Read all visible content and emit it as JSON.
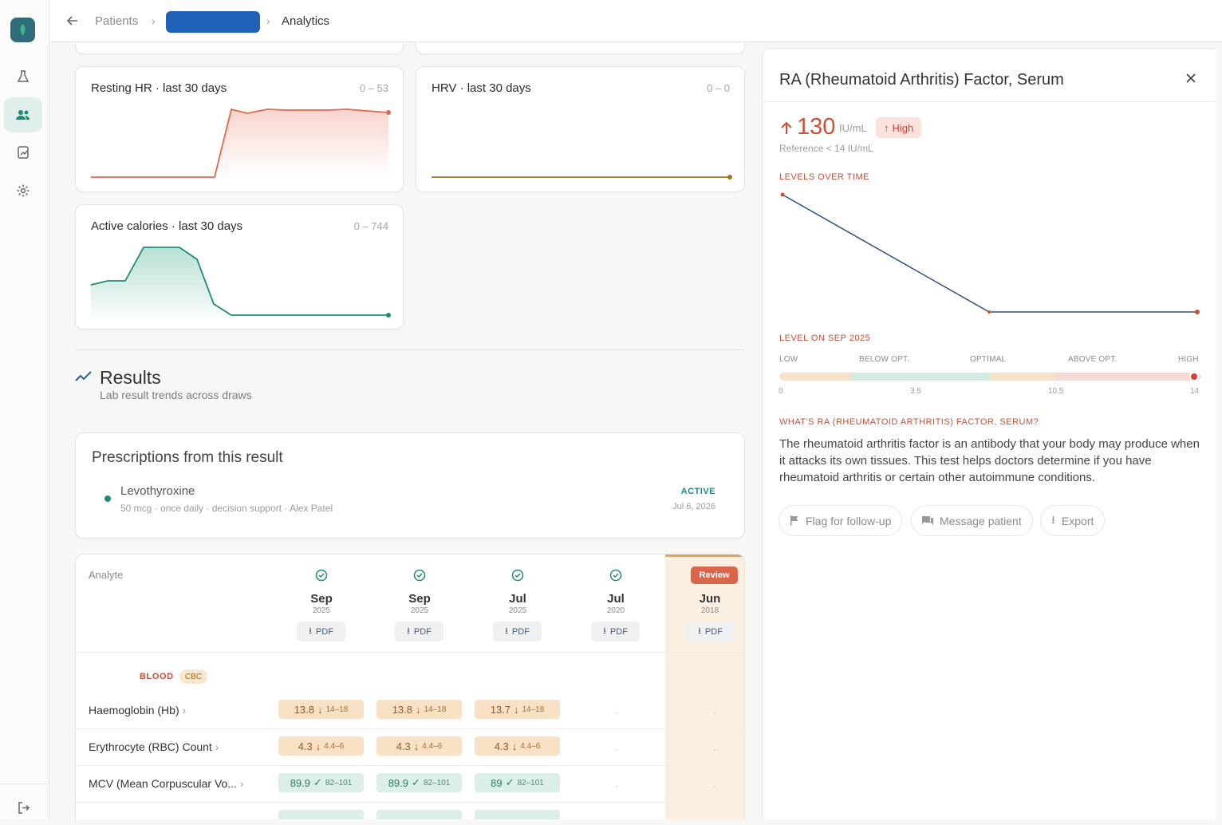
{
  "breadcrumb": {
    "patients": "Patients",
    "current": "Analytics"
  },
  "charts": {
    "resting_hr": {
      "title": "Resting HR · last 30 days",
      "range": "0 – 53"
    },
    "hrv": {
      "title": "HRV · last 30 days",
      "range": "0 – 0"
    },
    "calories": {
      "title": "Active calories · last 30 days",
      "range": "0 – 744"
    }
  },
  "results": {
    "title": "Results",
    "subtitle": "Lab result trends across draws"
  },
  "prescriptions": {
    "title": "Prescriptions from this result",
    "item": {
      "name": "Levothyroxine",
      "meta": "50 mcg · once daily · decision support · Alex Patel",
      "status": "ACTIVE",
      "date": "Jul 6, 2026"
    }
  },
  "table": {
    "analyte_header": "Analyte",
    "columns": [
      {
        "month": "Sep",
        "year": "2025",
        "pdf": "PDF"
      },
      {
        "month": "Sep",
        "year": "2025",
        "pdf": "PDF"
      },
      {
        "month": "Jul",
        "year": "2025",
        "pdf": "PDF"
      },
      {
        "month": "Jul",
        "year": "2020",
        "pdf": "PDF"
      },
      {
        "month": "Jun",
        "year": "2018",
        "pdf": "PDF",
        "badge": "Review"
      }
    ],
    "group": {
      "name": "BLOOD",
      "badge": "CBC"
    },
    "rows": [
      {
        "name": "Haemoglobin (Hb)",
        "cells": [
          {
            "v": "13.8",
            "r": "14–18"
          },
          {
            "v": "13.8",
            "r": "14–18"
          },
          {
            "v": "13.7",
            "r": "14–18"
          }
        ],
        "empty": "·"
      },
      {
        "name": "Erythrocyte (RBC) Count",
        "cells": [
          {
            "v": "4.3",
            "r": "4.4–6"
          },
          {
            "v": "4.3",
            "r": "4.4–6"
          },
          {
            "v": "4.3",
            "r": "4.4–6"
          }
        ],
        "empty": "·"
      },
      {
        "name": "MCV (Mean Corpuscular Vo...",
        "cells": [
          {
            "v": "89.9",
            "r": "82–101"
          },
          {
            "v": "89.9",
            "r": "82–101"
          },
          {
            "v": "89",
            "r": "82–101"
          }
        ],
        "empty": "·"
      }
    ]
  },
  "panel": {
    "title": "RA (Rheumatoid Arthritis) Factor, Serum",
    "value": "130",
    "unit": "IU/mL",
    "flag": "High",
    "reference": "Reference < 14 IU/mL",
    "levels_label": "LEVELS OVER TIME",
    "level_on_label": "LEVEL ON SEP 2025",
    "scale_labels": [
      "LOW",
      "BELOW OPT.",
      "OPTIMAL",
      "ABOVE OPT.",
      "HIGH"
    ],
    "scale_numbers": [
      "0",
      "3.5",
      "10.5",
      "14"
    ],
    "whats_label": "WHAT'S RA (RHEUMATOID ARTHRITIS) FACTOR, SERUM?",
    "description": "The rheumatoid arthritis factor is an antibody that your body may produce when it attacks its own tissues. This test helps doctors determine if you have rheumatoid arthritis or certain other autoimmune conditions.",
    "buttons": {
      "flag": "Flag for follow-up",
      "message": "Message patient",
      "export": "Export"
    }
  },
  "colors": {
    "accent": "#1f8a78",
    "high": "#d04f35",
    "brand": "#2f6c7a"
  }
}
